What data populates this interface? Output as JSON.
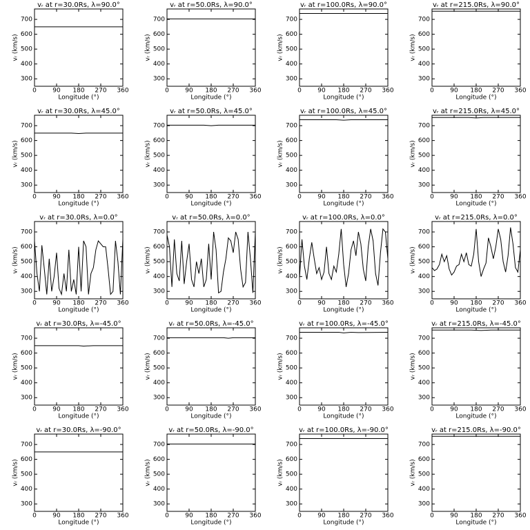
{
  "chart_data": [
    {
      "type": "line",
      "title": "vᵣ at r=30.0Rs, λ=90.0°",
      "xlabel": "Longitude (°)",
      "ylabel": "vᵣ (km/s)",
      "x": [
        0,
        360
      ],
      "values": [
        650,
        650
      ],
      "color": "#000000",
      "xlim": [
        0,
        360
      ],
      "ylim": [
        250,
        770
      ],
      "xticks": [
        0,
        90,
        180,
        270,
        360
      ],
      "yticks": [
        300,
        400,
        500,
        600,
        700
      ]
    },
    {
      "type": "line",
      "title": "vᵣ at r=50.0Rs, λ=90.0°",
      "xlabel": "Longitude (°)",
      "ylabel": "vᵣ (km/s)",
      "x": [
        0,
        360
      ],
      "values": [
        703,
        703
      ],
      "color": "#000000",
      "xlim": [
        0,
        360
      ],
      "ylim": [
        250,
        770
      ],
      "xticks": [
        0,
        90,
        180,
        270,
        360
      ],
      "yticks": [
        300,
        400,
        500,
        600,
        700
      ]
    },
    {
      "type": "line",
      "title": "vᵣ at r=100.0Rs, λ=90.0°",
      "xlabel": "Longitude (°)",
      "ylabel": "vᵣ (km/s)",
      "x": [
        0,
        360
      ],
      "values": [
        740,
        740
      ],
      "color": "#000000",
      "xlim": [
        0,
        360
      ],
      "ylim": [
        250,
        770
      ],
      "xticks": [
        0,
        90,
        180,
        270,
        360
      ],
      "yticks": [
        300,
        400,
        500,
        600,
        700
      ]
    },
    {
      "type": "line",
      "title": "vᵣ at r=215.0Rs, λ=90.0°",
      "xlabel": "Longitude (°)",
      "ylabel": "vᵣ (km/s)",
      "x": [
        0,
        360
      ],
      "values": [
        755,
        755
      ],
      "color": "#000000",
      "xlim": [
        0,
        360
      ],
      "ylim": [
        250,
        770
      ],
      "xticks": [
        0,
        90,
        180,
        270,
        360
      ],
      "yticks": [
        300,
        400,
        500,
        600,
        700
      ]
    },
    {
      "type": "line",
      "title": "vᵣ at r=30.0Rs, λ=45.0°",
      "xlabel": "Longitude (°)",
      "ylabel": "vᵣ (km/s)",
      "x": [
        0,
        150,
        180,
        210,
        360
      ],
      "values": [
        650,
        650,
        647,
        650,
        650
      ],
      "color": "#000000",
      "xlim": [
        0,
        360
      ],
      "ylim": [
        250,
        770
      ],
      "xticks": [
        0,
        90,
        180,
        270,
        360
      ],
      "yticks": [
        300,
        400,
        500,
        600,
        700
      ]
    },
    {
      "type": "line",
      "title": "vᵣ at r=50.0Rs, λ=45.0°",
      "xlabel": "Longitude (°)",
      "ylabel": "vᵣ (km/s)",
      "x": [
        0,
        150,
        180,
        210,
        360
      ],
      "values": [
        703,
        703,
        700,
        703,
        703
      ],
      "color": "#000000",
      "xlim": [
        0,
        360
      ],
      "ylim": [
        250,
        770
      ],
      "xticks": [
        0,
        90,
        180,
        270,
        360
      ],
      "yticks": [
        300,
        400,
        500,
        600,
        700
      ]
    },
    {
      "type": "line",
      "title": "vᵣ at r=100.0Rs, λ=45.0°",
      "xlabel": "Longitude (°)",
      "ylabel": "vᵣ (km/s)",
      "x": [
        0,
        150,
        180,
        210,
        360
      ],
      "values": [
        740,
        740,
        737,
        740,
        740
      ],
      "color": "#000000",
      "xlim": [
        0,
        360
      ],
      "ylim": [
        250,
        770
      ],
      "xticks": [
        0,
        90,
        180,
        270,
        360
      ],
      "yticks": [
        300,
        400,
        500,
        600,
        700
      ]
    },
    {
      "type": "line",
      "title": "vᵣ at r=215.0Rs, λ=45.0°",
      "xlabel": "Longitude (°)",
      "ylabel": "vᵣ (km/s)",
      "x": [
        0,
        150,
        180,
        210,
        360
      ],
      "values": [
        755,
        755,
        752,
        755,
        755
      ],
      "color": "#000000",
      "xlim": [
        0,
        360
      ],
      "ylim": [
        250,
        770
      ],
      "xticks": [
        0,
        90,
        180,
        270,
        360
      ],
      "yticks": [
        300,
        400,
        500,
        600,
        700
      ]
    },
    {
      "type": "line",
      "title": "vᵣ at r=30.0Rs, λ=0.0°",
      "xlabel": "Longitude (°)",
      "ylabel": "vᵣ (km/s)",
      "x": [
        0,
        10,
        20,
        30,
        40,
        50,
        60,
        70,
        80,
        90,
        100,
        110,
        120,
        130,
        140,
        150,
        160,
        170,
        180,
        190,
        200,
        210,
        220,
        230,
        240,
        250,
        260,
        270,
        280,
        290,
        300,
        310,
        320,
        330,
        340,
        350,
        360
      ],
      "values": [
        640,
        420,
        300,
        610,
        450,
        280,
        520,
        300,
        400,
        560,
        320,
        280,
        420,
        300,
        580,
        300,
        380,
        280,
        600,
        300,
        640,
        600,
        280,
        420,
        460,
        580,
        640,
        620,
        600,
        600,
        450,
        280,
        300,
        640,
        500,
        280,
        650
      ],
      "color": "#000000",
      "xlim": [
        0,
        360
      ],
      "ylim": [
        250,
        770
      ],
      "xticks": [
        0,
        90,
        180,
        270,
        360
      ],
      "yticks": [
        300,
        400,
        500,
        600,
        700
      ]
    },
    {
      "type": "line",
      "title": "vᵣ at r=50.0Rs, λ=0.0°",
      "xlabel": "Longitude (°)",
      "ylabel": "vᵣ (km/s)",
      "x": [
        0,
        10,
        20,
        30,
        40,
        50,
        60,
        70,
        80,
        90,
        100,
        110,
        120,
        130,
        140,
        150,
        160,
        170,
        180,
        190,
        200,
        210,
        220,
        230,
        240,
        250,
        260,
        270,
        280,
        290,
        300,
        310,
        320,
        330,
        340,
        350,
        360
      ],
      "values": [
        680,
        600,
        330,
        650,
        420,
        370,
        640,
        350,
        500,
        620,
        380,
        330,
        500,
        420,
        520,
        330,
        380,
        620,
        380,
        700,
        580,
        290,
        300,
        430,
        520,
        660,
        640,
        560,
        700,
        650,
        450,
        330,
        360,
        700,
        520,
        290,
        700
      ],
      "color": "#000000",
      "xlim": [
        0,
        360
      ],
      "ylim": [
        250,
        770
      ],
      "xticks": [
        0,
        90,
        180,
        270,
        360
      ],
      "yticks": [
        300,
        400,
        500,
        600,
        700
      ]
    },
    {
      "type": "line",
      "title": "vᵣ at r=100.0Rs, λ=0.0°",
      "xlabel": "Longitude (°)",
      "ylabel": "vᵣ (km/s)",
      "x": [
        0,
        10,
        20,
        30,
        40,
        50,
        60,
        70,
        80,
        90,
        100,
        110,
        120,
        130,
        140,
        150,
        160,
        170,
        180,
        190,
        200,
        210,
        220,
        230,
        240,
        250,
        260,
        270,
        280,
        290,
        300,
        310,
        320,
        330,
        340,
        350,
        360
      ],
      "values": [
        390,
        650,
        470,
        380,
        520,
        630,
        520,
        420,
        460,
        380,
        430,
        600,
        420,
        380,
        470,
        430,
        550,
        720,
        480,
        330,
        420,
        580,
        640,
        540,
        700,
        620,
        450,
        370,
        600,
        720,
        640,
        420,
        340,
        560,
        720,
        700,
        520
      ],
      "color": "#000000",
      "xlim": [
        0,
        360
      ],
      "ylim": [
        250,
        770
      ],
      "xticks": [
        0,
        90,
        180,
        270,
        360
      ],
      "yticks": [
        300,
        400,
        500,
        600,
        700
      ]
    },
    {
      "type": "line",
      "title": "vᵣ at r=215.0Rs, λ=0.0°",
      "xlabel": "Longitude (°)",
      "ylabel": "vᵣ (km/s)",
      "x": [
        0,
        10,
        20,
        30,
        40,
        50,
        60,
        70,
        80,
        90,
        100,
        110,
        120,
        130,
        140,
        150,
        160,
        170,
        180,
        190,
        200,
        210,
        220,
        230,
        240,
        250,
        260,
        270,
        280,
        290,
        300,
        310,
        320,
        330,
        340,
        350,
        360
      ],
      "values": [
        460,
        440,
        450,
        480,
        550,
        500,
        540,
        450,
        410,
        430,
        470,
        480,
        550,
        500,
        560,
        480,
        470,
        550,
        720,
        500,
        400,
        450,
        490,
        660,
        600,
        520,
        600,
        720,
        650,
        500,
        430,
        540,
        730,
        620,
        460,
        430,
        580
      ],
      "color": "#000000",
      "xlim": [
        0,
        360
      ],
      "ylim": [
        250,
        770
      ],
      "xticks": [
        0,
        90,
        180,
        270,
        360
      ],
      "yticks": [
        300,
        400,
        500,
        600,
        700
      ]
    },
    {
      "type": "line",
      "title": "vᵣ at r=30.0Rs, λ=-45.0°",
      "xlabel": "Longitude (°)",
      "ylabel": "vᵣ (km/s)",
      "x": [
        0,
        180,
        200,
        240,
        360
      ],
      "values": [
        650,
        650,
        647,
        650,
        650
      ],
      "color": "#000000",
      "xlim": [
        0,
        360
      ],
      "ylim": [
        250,
        770
      ],
      "xticks": [
        0,
        90,
        180,
        270,
        360
      ],
      "yticks": [
        300,
        400,
        500,
        600,
        700
      ]
    },
    {
      "type": "line",
      "title": "vᵣ at r=50.0Rs, λ=-45.0°",
      "xlabel": "Longitude (°)",
      "ylabel": "vᵣ (km/s)",
      "x": [
        0,
        230,
        250,
        270,
        360
      ],
      "values": [
        703,
        703,
        700,
        703,
        703
      ],
      "color": "#000000",
      "xlim": [
        0,
        360
      ],
      "ylim": [
        250,
        770
      ],
      "xticks": [
        0,
        90,
        180,
        270,
        360
      ],
      "yticks": [
        300,
        400,
        500,
        600,
        700
      ]
    },
    {
      "type": "line",
      "title": "vᵣ at r=100.0Rs, λ=-45.0°",
      "xlabel": "Longitude (°)",
      "ylabel": "vᵣ (km/s)",
      "x": [
        0,
        160,
        180,
        210,
        240,
        360
      ],
      "values": [
        740,
        740,
        736,
        740,
        738,
        740
      ],
      "color": "#000000",
      "xlim": [
        0,
        360
      ],
      "ylim": [
        250,
        770
      ],
      "xticks": [
        0,
        90,
        180,
        270,
        360
      ],
      "yticks": [
        300,
        400,
        500,
        600,
        700
      ]
    },
    {
      "type": "line",
      "title": "vᵣ at r=215.0Rs, λ=-45.0°",
      "xlabel": "Longitude (°)",
      "ylabel": "vᵣ (km/s)",
      "x": [
        0,
        160,
        200,
        240,
        360
      ],
      "values": [
        755,
        755,
        752,
        755,
        755
      ],
      "color": "#000000",
      "xlim": [
        0,
        360
      ],
      "ylim": [
        250,
        770
      ],
      "xticks": [
        0,
        90,
        180,
        270,
        360
      ],
      "yticks": [
        300,
        400,
        500,
        600,
        700
      ]
    },
    {
      "type": "line",
      "title": "vᵣ at r=30.0Rs, λ=-90.0°",
      "xlabel": "Longitude (°)",
      "ylabel": "vᵣ (km/s)",
      "x": [
        0,
        360
      ],
      "values": [
        650,
        650
      ],
      "color": "#000000",
      "xlim": [
        0,
        360
      ],
      "ylim": [
        250,
        770
      ],
      "xticks": [
        0,
        90,
        180,
        270,
        360
      ],
      "yticks": [
        300,
        400,
        500,
        600,
        700
      ]
    },
    {
      "type": "line",
      "title": "vᵣ at r=50.0Rs, λ=-90.0°",
      "xlabel": "Longitude (°)",
      "ylabel": "vᵣ (km/s)",
      "x": [
        0,
        360
      ],
      "values": [
        703,
        703
      ],
      "color": "#000000",
      "xlim": [
        0,
        360
      ],
      "ylim": [
        250,
        770
      ],
      "xticks": [
        0,
        90,
        180,
        270,
        360
      ],
      "yticks": [
        300,
        400,
        500,
        600,
        700
      ]
    },
    {
      "type": "line",
      "title": "vᵣ at r=100.0Rs, λ=-90.0°",
      "xlabel": "Longitude (°)",
      "ylabel": "vᵣ (km/s)",
      "x": [
        0,
        360
      ],
      "values": [
        740,
        740
      ],
      "color": "#000000",
      "xlim": [
        0,
        360
      ],
      "ylim": [
        250,
        770
      ],
      "xticks": [
        0,
        90,
        180,
        270,
        360
      ],
      "yticks": [
        300,
        400,
        500,
        600,
        700
      ]
    },
    {
      "type": "line",
      "title": "vᵣ at r=215.0Rs, λ=-90.0°",
      "xlabel": "Longitude (°)",
      "ylabel": "vᵣ (km/s)",
      "x": [
        0,
        360
      ],
      "values": [
        755,
        755
      ],
      "color": "#000000",
      "xlim": [
        0,
        360
      ],
      "ylim": [
        250,
        770
      ],
      "xticks": [
        0,
        90,
        180,
        270,
        360
      ],
      "yticks": [
        300,
        400,
        500,
        600,
        700
      ]
    }
  ]
}
